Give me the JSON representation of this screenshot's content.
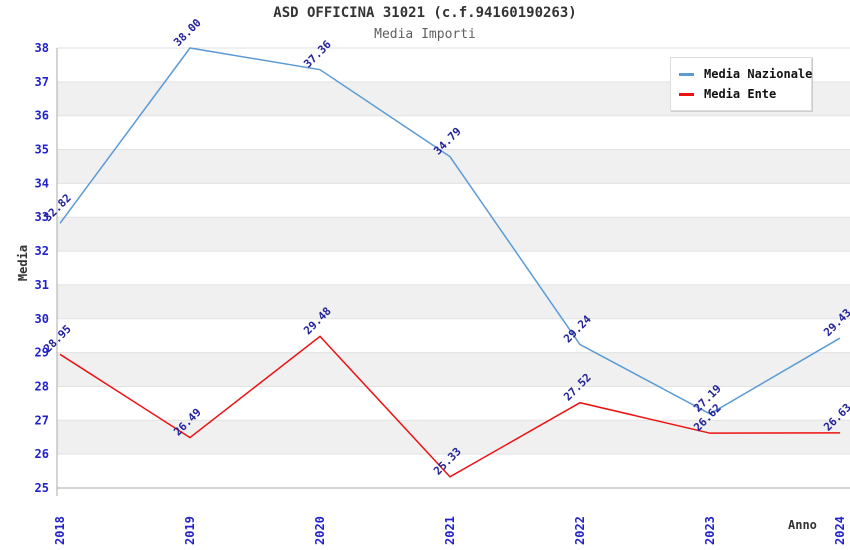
{
  "title": "ASD OFFICINA 31021 (c.f.94160190263)",
  "subtitle": "Media Importi",
  "legend": [
    {
      "label": "Media Nazionale",
      "color": "#5b9bd5"
    },
    {
      "label": "Media Ente",
      "color": "#ee1111"
    }
  ],
  "chart_data": {
    "type": "line",
    "x": [
      2018,
      2019,
      2020,
      2021,
      2022,
      2023,
      2024
    ],
    "series": [
      {
        "name": "Media Nazionale",
        "color": "#5b9bd5",
        "values": [
          32.82,
          38.0,
          37.36,
          34.79,
          29.24,
          27.19,
          29.43
        ]
      },
      {
        "name": "Media Ente",
        "color": "#ee1111",
        "values": [
          28.95,
          26.49,
          29.48,
          25.33,
          27.52,
          26.62,
          26.63
        ]
      }
    ],
    "title": "ASD OFFICINA 31021 (c.f.94160190263)",
    "subtitle": "Media Importi",
    "xlabel": "Anno",
    "ylabel": "Media",
    "ylim": [
      25,
      38
    ],
    "ytick_step": 1,
    "value_label_decimals": 2,
    "grid": true,
    "legend_position": "top-right",
    "band_colors": [
      "#ffffff",
      "#f0f0f0"
    ],
    "grid_color": "#e2e2e2",
    "frame_color": "#aaaaaa",
    "tick_color": "#2222cc",
    "value_label_color": "#22229a",
    "axis_title_color": "#333333"
  }
}
